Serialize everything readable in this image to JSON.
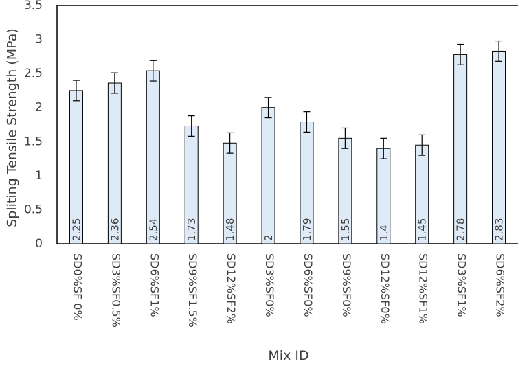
{
  "chart_data": {
    "type": "bar",
    "xlabel": "Mix ID",
    "ylabel": "Spliting Tensile Strength (MPa)",
    "ylim": [
      0,
      3.5
    ],
    "yticks": [
      "0",
      "0.5",
      "1",
      "1.5",
      "2",
      "2.5",
      "3",
      "3.5"
    ],
    "grid": false,
    "categories": [
      "SD0%SF 0%",
      "SD3%SF0.5%",
      "SD6%SF1%",
      "SD9%SF1.5%",
      "SD12%SF2%",
      "SD3%SF0%",
      "SD6%SF0%",
      "SD9%SF0%",
      "SD12%SF0%",
      "SD12%SF1%",
      "SD3%SF1%",
      "SD6%SF2%"
    ],
    "values": [
      2.25,
      2.36,
      2.54,
      1.73,
      1.48,
      2,
      1.79,
      1.55,
      1.4,
      1.45,
      2.78,
      2.83
    ],
    "data_labels": [
      "2.25",
      "2.36",
      "2.54",
      "1.73",
      "1.48",
      "2",
      "1.79",
      "1.55",
      "1.4",
      "1.45",
      "2.78",
      "2.83"
    ],
    "error": [
      0.15,
      0.15,
      0.15,
      0.15,
      0.15,
      0.15,
      0.15,
      0.15,
      0.15,
      0.15,
      0.15,
      0.15
    ],
    "bar_fill": "#deebf7",
    "bar_stroke": "#000000"
  }
}
